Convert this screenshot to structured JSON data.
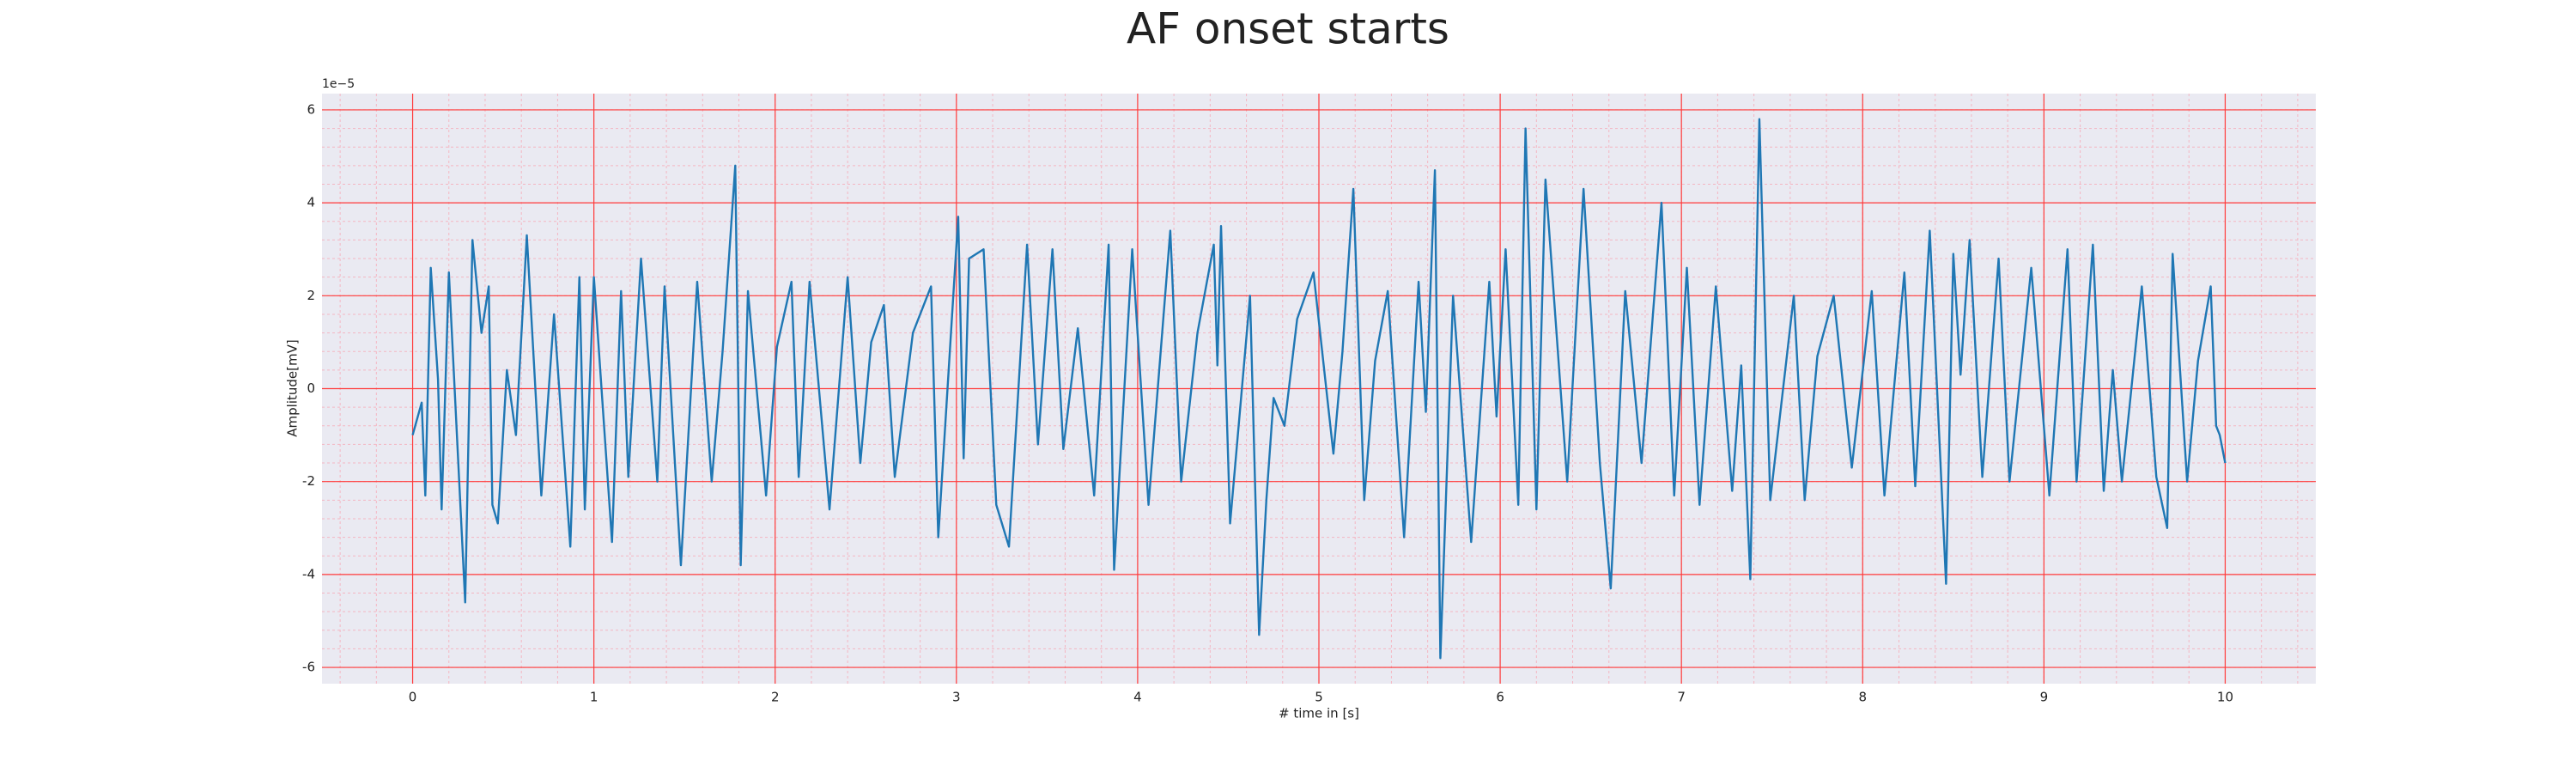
{
  "chart_data": {
    "type": "line",
    "title": "AF onset starts",
    "xlabel": "# time in [s]",
    "ylabel": "Amplitude[mV]",
    "y_offset_label": "1e−5",
    "xlim": [
      -0.5,
      10.5
    ],
    "xticks": [
      0,
      1,
      2,
      3,
      4,
      5,
      6,
      7,
      8,
      9,
      10
    ],
    "ylim": [
      -6.35,
      6.35
    ],
    "yticks": [
      -6,
      -4,
      -2,
      0,
      2,
      4,
      6
    ],
    "grid": true,
    "minor_grid": true,
    "grid_color": "#ff3b3b",
    "minor_grid_color": "#f4b6c2",
    "background": "#eaeaf2",
    "series": [
      {
        "color": "#1f77b4",
        "x": [
          0,
          0.05,
          0.07,
          0.1,
          0.14,
          0.16,
          0.2,
          0.29,
          0.33,
          0.38,
          0.42,
          0.44,
          0.47,
          0.52,
          0.57,
          0.63,
          0.71,
          0.78,
          0.87,
          0.92,
          0.95,
          1.0,
          1.1,
          1.15,
          1.19,
          1.26,
          1.35,
          1.39,
          1.48,
          1.57,
          1.65,
          1.71,
          1.78,
          1.81,
          1.85,
          1.95,
          2.01,
          2.09,
          2.13,
          2.19,
          2.3,
          2.4,
          2.47,
          2.53,
          2.6,
          2.66,
          2.76,
          2.86,
          2.9,
          3.01,
          3.04,
          3.07,
          3.15,
          3.22,
          3.29,
          3.39,
          3.45,
          3.53,
          3.59,
          3.67,
          3.76,
          3.84,
          3.87,
          3.97,
          4.06,
          4.18,
          4.24,
          4.33,
          4.42,
          4.44,
          4.46,
          4.51,
          4.62,
          4.67,
          4.71,
          4.75,
          4.81,
          4.88,
          4.97,
          5.08,
          5.13,
          5.19,
          5.25,
          5.31,
          5.38,
          5.47,
          5.55,
          5.59,
          5.64,
          5.67,
          5.74,
          5.84,
          5.94,
          5.98,
          6.03,
          6.1,
          6.14,
          6.2,
          6.25,
          6.37,
          6.46,
          6.55,
          6.61,
          6.69,
          6.78,
          6.89,
          6.96,
          7.03,
          7.1,
          7.19,
          7.28,
          7.33,
          7.38,
          7.43,
          7.49,
          7.62,
          7.68,
          7.75,
          7.84,
          7.94,
          8.05,
          8.12,
          8.23,
          8.29,
          8.37,
          8.46,
          8.5,
          8.54,
          8.59,
          8.66,
          8.75,
          8.81,
          8.93,
          9.03,
          9.13,
          9.18,
          9.27,
          9.33,
          9.38,
          9.43,
          9.54,
          9.62,
          9.68,
          9.71,
          9.79,
          9.85,
          9.92,
          9.95,
          9.97,
          10.0
        ],
        "values": [
          -1.0,
          -0.3,
          -2.3,
          2.6,
          0.2,
          -2.6,
          2.5,
          -4.6,
          3.2,
          1.2,
          2.2,
          -2.5,
          -2.9,
          0.4,
          -1.0,
          3.3,
          -2.3,
          1.6,
          -3.4,
          2.4,
          -2.6,
          2.4,
          -3.3,
          2.1,
          -1.9,
          2.8,
          -2.0,
          2.2,
          -3.8,
          2.3,
          -2.0,
          0.8,
          4.8,
          -3.8,
          2.1,
          -2.3,
          0.9,
          2.3,
          -1.9,
          2.3,
          -2.6,
          2.4,
          -1.6,
          1.0,
          1.8,
          -1.9,
          1.2,
          2.2,
          -3.2,
          3.7,
          -1.5,
          2.8,
          3.0,
          -2.5,
          -3.4,
          3.1,
          -1.2,
          3.0,
          -1.3,
          1.3,
          -2.3,
          3.1,
          -3.9,
          3.0,
          -2.5,
          3.4,
          -2.0,
          1.2,
          3.1,
          0.5,
          3.5,
          -2.9,
          2.0,
          -5.3,
          -2.4,
          -0.2,
          -0.8,
          1.5,
          2.5,
          -1.4,
          0.8,
          4.3,
          -2.4,
          0.6,
          2.1,
          -3.2,
          2.3,
          -0.5,
          4.7,
          -5.8,
          2.0,
          -3.3,
          2.3,
          -0.6,
          3.0,
          -2.5,
          5.6,
          -2.6,
          4.5,
          -2.0,
          4.3,
          -1.6,
          -4.3,
          2.1,
          -1.6,
          4.0,
          -2.3,
          2.6,
          -2.5,
          2.2,
          -2.2,
          0.5,
          -4.1,
          5.8,
          -2.4,
          2.0,
          -2.4,
          0.7,
          2.0,
          -1.7,
          2.1,
          -2.3,
          2.5,
          -2.1,
          3.4,
          -4.2,
          2.9,
          0.3,
          3.2,
          -1.9,
          2.8,
          -2.0,
          2.6,
          -2.3,
          3.0,
          -2.0,
          3.1,
          -2.2,
          0.4,
          -2.0,
          2.2,
          -1.9,
          -3.0,
          2.9,
          -2.0,
          0.6,
          2.2,
          -0.8,
          -1.0,
          -1.6
        ]
      }
    ]
  }
}
